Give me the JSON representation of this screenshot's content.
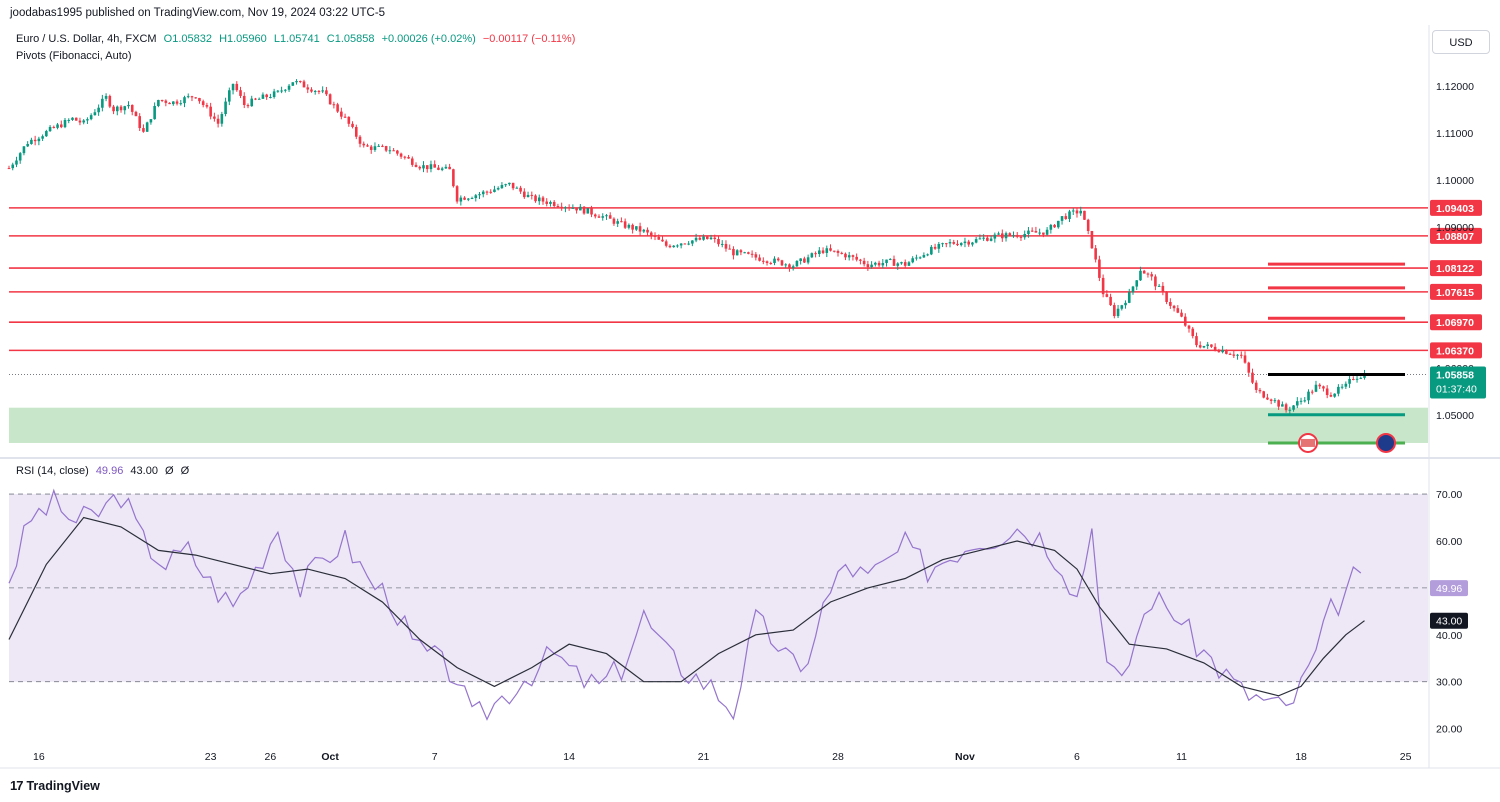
{
  "publisher_line": "joodabas1995 published on TradingView.com, Nov 19, 2024 03:22 UTC-5",
  "legend": {
    "symbol": "Euro / U.S. Dollar, 4h, FXCM",
    "open": "O1.05832",
    "high": "H1.05960",
    "low": "L1.05741",
    "close": "C1.05858",
    "change": "+0.00026 (+0.02%)",
    "change2": "−0.00117 (−0.11%)",
    "pivots_label": "Pivots (Fibonacci, Auto)",
    "rsi_label": "RSI (14, close)",
    "rsi_value": "49.96",
    "rsi_ma_value": "43.00",
    "rsi_extra1": "Ø",
    "rsi_extra2": "Ø"
  },
  "currency_button": "USD",
  "branding": "TradingView",
  "colors": {
    "up": "#089981",
    "down": "#f23645",
    "pivot_line": "#f23645",
    "support_zone": "#c8e6c9",
    "rsi_line": "#9575cd",
    "rsi_ma": "#2a2e39",
    "rsi_band": "#ede7f6"
  },
  "chart_data": [
    {
      "type": "candlestick",
      "title": "Euro / U.S. Dollar, 4h, FXCM",
      "x_ticks": [
        "16",
        "23",
        "26",
        "Oct",
        "7",
        "14",
        "21",
        "28",
        "Nov",
        "6",
        "11",
        "18",
        "25"
      ],
      "y_ticks": [
        "1.12000",
        "1.11000",
        "1.10000",
        "1.09000",
        "1.06000",
        "1.05000"
      ],
      "ylim": [
        1.0425,
        1.1255
      ],
      "last_price": "1.05858",
      "countdown": "01:37:40",
      "pivot_levels": [
        {
          "label": "1.09403",
          "value": 1.09403
        },
        {
          "label": "1.08807",
          "value": 1.08807
        },
        {
          "label": "1.08122",
          "value": 1.08122
        },
        {
          "label": "1.07615",
          "value": 1.07615
        },
        {
          "label": "1.06970",
          "value": 1.0697
        },
        {
          "label": "1.06370",
          "value": 1.0637
        }
      ],
      "support_zone": [
        1.044,
        1.0515
      ],
      "price_path": [
        [
          0,
          1.1025
        ],
        [
          5,
          1.108
        ],
        [
          12,
          1.111
        ],
        [
          17,
          1.113
        ],
        [
          20,
          1.112
        ],
        [
          26,
          1.1175
        ],
        [
          28,
          1.115
        ],
        [
          32,
          1.116
        ],
        [
          36,
          1.11
        ],
        [
          40,
          1.117
        ],
        [
          44,
          1.1165
        ],
        [
          50,
          1.118
        ],
        [
          56,
          1.112
        ],
        [
          60,
          1.1205
        ],
        [
          63,
          1.116
        ],
        [
          68,
          1.1175
        ],
        [
          72,
          1.1185
        ],
        [
          76,
          1.121
        ],
        [
          84,
          1.1185
        ],
        [
          90,
          1.113
        ],
        [
          95,
          1.107
        ],
        [
          102,
          1.1065
        ],
        [
          110,
          1.103
        ],
        [
          118,
          1.102
        ],
        [
          120,
          1.096
        ],
        [
          126,
          1.097
        ],
        [
          134,
          1.099
        ],
        [
          140,
          1.096
        ],
        [
          146,
          1.095
        ],
        [
          152,
          1.094
        ],
        [
          158,
          1.0925
        ],
        [
          164,
          1.0905
        ],
        [
          170,
          1.089
        ],
        [
          176,
          1.086
        ],
        [
          182,
          1.087
        ],
        [
          188,
          1.0875
        ],
        [
          194,
          1.0845
        ],
        [
          200,
          1.0835
        ],
        [
          206,
          1.0825
        ],
        [
          210,
          1.0818
        ],
        [
          218,
          1.085
        ],
        [
          224,
          1.084
        ],
        [
          230,
          1.082
        ],
        [
          236,
          1.0825
        ],
        [
          240,
          1.082
        ],
        [
          246,
          1.0848
        ],
        [
          252,
          1.0865
        ],
        [
          258,
          1.087
        ],
        [
          264,
          1.088
        ],
        [
          272,
          1.0885
        ],
        [
          278,
          1.089
        ],
        [
          282,
          1.092
        ],
        [
          287,
          1.0935
        ],
        [
          290,
          1.086
        ],
        [
          293,
          1.076
        ],
        [
          296,
          1.0715
        ],
        [
          300,
          1.0755
        ],
        [
          303,
          1.081
        ],
        [
          306,
          1.079
        ],
        [
          310,
          1.0745
        ],
        [
          314,
          1.0705
        ],
        [
          318,
          1.065
        ],
        [
          324,
          1.064
        ],
        [
          330,
          1.0625
        ],
        [
          334,
          1.055
        ],
        [
          338,
          1.0535
        ],
        [
          342,
          1.051
        ],
        [
          346,
          1.053
        ],
        [
          350,
          1.056
        ],
        [
          354,
          1.0545
        ],
        [
          358,
          1.056
        ],
        [
          360,
          1.058
        ],
        [
          363,
          1.0586
        ]
      ]
    },
    {
      "type": "line",
      "title": "RSI (14, close)",
      "y_ticks": [
        "70.00",
        "60.00",
        "50.00",
        "40.00",
        "30.00",
        "20.00"
      ],
      "ylim": [
        18,
        73
      ],
      "bands": {
        "upper": 70,
        "middle": 50,
        "lower": 30
      },
      "current_value": 49.96,
      "ma_value": 43.0,
      "series": [
        {
          "name": "RSI (14, close)",
          "points": [
            [
              0,
              52
            ],
            [
              6,
              65
            ],
            [
              12,
              68
            ],
            [
              18,
              64
            ],
            [
              24,
              66
            ],
            [
              30,
              70
            ],
            [
              36,
              60
            ],
            [
              42,
              55
            ],
            [
              48,
              58
            ],
            [
              54,
              51
            ],
            [
              60,
              46
            ],
            [
              66,
              54
            ],
            [
              72,
              63
            ],
            [
              78,
              50
            ],
            [
              84,
              56
            ],
            [
              90,
              60
            ],
            [
              96,
              52
            ],
            [
              102,
              48
            ],
            [
              108,
              38
            ],
            [
              114,
              35
            ],
            [
              120,
              31
            ],
            [
              124,
              22
            ],
            [
              128,
              24
            ],
            [
              134,
              28
            ],
            [
              140,
              32
            ],
            [
              146,
              36
            ],
            [
              152,
              31
            ],
            [
              158,
              29
            ],
            [
              164,
              33
            ],
            [
              170,
              44
            ],
            [
              176,
              36
            ],
            [
              182,
              32
            ],
            [
              188,
              29
            ],
            [
              194,
              24
            ],
            [
              200,
              43
            ],
            [
              206,
              38
            ],
            [
              212,
              31
            ],
            [
              218,
              46
            ],
            [
              224,
              55
            ],
            [
              230,
              52
            ],
            [
              236,
              56
            ],
            [
              240,
              59
            ],
            [
              246,
              54
            ],
            [
              252,
              57
            ],
            [
              258,
              60
            ],
            [
              264,
              61
            ],
            [
              270,
              63
            ],
            [
              276,
              61
            ],
            [
              282,
              55
            ],
            [
              286,
              48
            ],
            [
              290,
              63
            ],
            [
              294,
              34
            ],
            [
              298,
              29
            ],
            [
              302,
              40
            ],
            [
              306,
              48
            ],
            [
              312,
              45
            ],
            [
              318,
              38
            ],
            [
              324,
              33
            ],
            [
              330,
              28
            ],
            [
              336,
              26
            ],
            [
              342,
              24
            ],
            [
              346,
              29
            ],
            [
              350,
              36
            ],
            [
              354,
              45
            ],
            [
              358,
              49
            ],
            [
              360,
              52
            ],
            [
              363,
              50
            ]
          ]
        },
        {
          "name": "RSI-based MA",
          "points": [
            [
              0,
              39
            ],
            [
              10,
              55
            ],
            [
              20,
              65
            ],
            [
              30,
              63
            ],
            [
              40,
              58
            ],
            [
              50,
              57
            ],
            [
              60,
              55
            ],
            [
              70,
              53
            ],
            [
              80,
              54
            ],
            [
              90,
              52
            ],
            [
              100,
              47
            ],
            [
              110,
              39
            ],
            [
              120,
              33
            ],
            [
              130,
              29
            ],
            [
              140,
              33
            ],
            [
              150,
              38
            ],
            [
              160,
              36
            ],
            [
              170,
              30
            ],
            [
              180,
              30
            ],
            [
              190,
              36
            ],
            [
              200,
              40
            ],
            [
              210,
              41
            ],
            [
              220,
              47
            ],
            [
              230,
              50
            ],
            [
              240,
              52
            ],
            [
              250,
              56
            ],
            [
              260,
              58
            ],
            [
              270,
              60
            ],
            [
              280,
              58
            ],
            [
              286,
              54
            ],
            [
              292,
              46
            ],
            [
              300,
              38
            ],
            [
              310,
              37
            ],
            [
              320,
              34
            ],
            [
              330,
              29
            ],
            [
              340,
              27
            ],
            [
              346,
              29
            ],
            [
              352,
              35
            ],
            [
              358,
              40
            ],
            [
              363,
              43
            ]
          ]
        }
      ]
    }
  ]
}
